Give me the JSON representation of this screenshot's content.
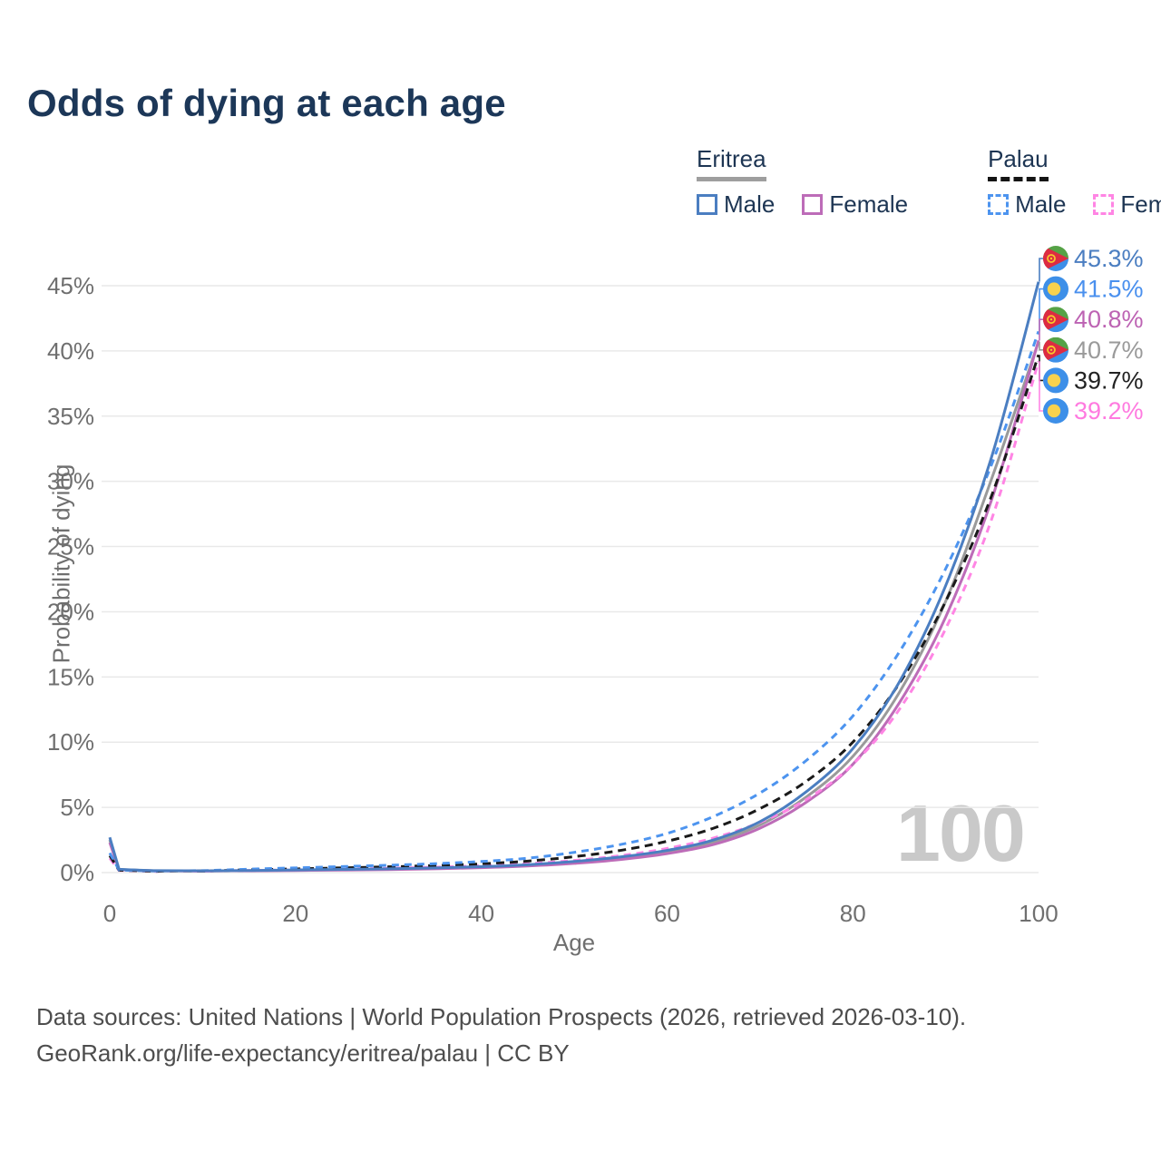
{
  "title": "Odds of dying at each age",
  "watermark": "100",
  "legend": {
    "groups": [
      {
        "label": "Eritrea",
        "line_style": "solid",
        "line_color": "#9e9e9e",
        "items": [
          {
            "label": "Male",
            "color": "#4b7ec1",
            "dashed": false
          },
          {
            "label": "Female",
            "color": "#bd6cb8",
            "dashed": false
          }
        ]
      },
      {
        "label": "Palau",
        "line_style": "dashed",
        "line_color": "#141414",
        "items": [
          {
            "label": "Male",
            "color": "#4d94ef",
            "dashed": true
          },
          {
            "label": "Female",
            "color": "#ff85e4",
            "dashed": true
          }
        ]
      }
    ]
  },
  "chart_data": {
    "type": "line",
    "title": "Odds of dying at each age",
    "xlabel": "Age",
    "ylabel": "Probability of dying",
    "xlim": [
      0,
      100
    ],
    "ylim": [
      0,
      47
    ],
    "x_ticks": [
      0,
      20,
      40,
      60,
      80,
      100
    ],
    "y_ticks": [
      0,
      5,
      10,
      15,
      20,
      25,
      30,
      35,
      40,
      45
    ],
    "y_tick_suffix": "%",
    "grid": true,
    "legend_position": "top-right",
    "age_marker": "100",
    "ages": [
      0,
      1,
      5,
      10,
      15,
      20,
      25,
      30,
      35,
      40,
      45,
      50,
      55,
      60,
      65,
      70,
      75,
      80,
      85,
      90,
      95,
      100
    ],
    "series": [
      {
        "name": "Eritrea",
        "country": "eritrea",
        "sex": "all",
        "color": "#9a9a9a",
        "dash": null,
        "end_label": "40.7%",
        "end_value": 40.7,
        "values": [
          2.5,
          0.24,
          0.14,
          0.12,
          0.15,
          0.18,
          0.22,
          0.26,
          0.33,
          0.41,
          0.55,
          0.78,
          1.1,
          1.58,
          2.33,
          3.65,
          5.8,
          8.9,
          13.8,
          20.8,
          30.3,
          40.7
        ]
      },
      {
        "name": "Eritrea Female",
        "country": "eritrea",
        "sex": "female",
        "color": "#bd6cb8",
        "dash": null,
        "end_label": "40.8%",
        "end_value": 40.8,
        "values": [
          2.3,
          0.22,
          0.13,
          0.11,
          0.13,
          0.16,
          0.19,
          0.23,
          0.29,
          0.37,
          0.5,
          0.7,
          1.0,
          1.45,
          2.15,
          3.4,
          5.4,
          8.3,
          13.0,
          19.6,
          28.7,
          40.8
        ]
      },
      {
        "name": "Palau Female",
        "country": "palau",
        "sex": "female",
        "color": "#ff85e4",
        "dash": "8 6",
        "end_label": "39.2%",
        "end_value": 39.2,
        "values": [
          1.1,
          0.16,
          0.09,
          0.1,
          0.16,
          0.21,
          0.27,
          0.33,
          0.41,
          0.52,
          0.68,
          0.93,
          1.3,
          1.85,
          2.65,
          3.85,
          5.6,
          8.3,
          12.5,
          18.7,
          27.2,
          39.2
        ]
      },
      {
        "name": "Palau",
        "country": "palau",
        "sex": "all",
        "color": "#1a1a1a",
        "dash": "9 6",
        "end_label": "39.7%",
        "end_value": 39.7,
        "values": [
          1.3,
          0.18,
          0.1,
          0.12,
          0.21,
          0.28,
          0.36,
          0.44,
          0.54,
          0.67,
          0.88,
          1.22,
          1.7,
          2.4,
          3.4,
          4.9,
          7.0,
          10.0,
          14.5,
          20.8,
          29.0,
          39.7
        ]
      },
      {
        "name": "Palau Male",
        "country": "palau",
        "sex": "male",
        "color": "#4d94ef",
        "dash": "8 6",
        "end_label": "41.5%",
        "end_value": 41.5,
        "values": [
          1.5,
          0.2,
          0.12,
          0.15,
          0.26,
          0.36,
          0.46,
          0.56,
          0.68,
          0.85,
          1.1,
          1.55,
          2.15,
          3.0,
          4.3,
          6.1,
          8.6,
          12.0,
          16.9,
          23.3,
          31.4,
          41.5
        ]
      },
      {
        "name": "Eritrea Male",
        "country": "eritrea",
        "sex": "male",
        "color": "#4b7ec1",
        "dash": null,
        "end_label": "45.3%",
        "end_value": 45.3,
        "values": [
          2.7,
          0.25,
          0.15,
          0.13,
          0.16,
          0.2,
          0.24,
          0.29,
          0.36,
          0.45,
          0.6,
          0.85,
          1.2,
          1.7,
          2.5,
          3.9,
          6.2,
          9.5,
          14.6,
          22.0,
          32.0,
          45.3
        ]
      }
    ],
    "end_label_text_colors": {
      "45.3%": "#4b7ec1",
      "41.5%": "#4a90ee",
      "40.8%": "#bd63b3",
      "40.7%": "#9a9a9a",
      "39.7%": "#222222",
      "39.2%": "#ff7ae0"
    },
    "flag_colors": {
      "eritrea": {
        "green": "#55a246",
        "blue": "#3d8fe8",
        "red": "#dd2b42",
        "gold": "#f6c62e"
      },
      "palau": {
        "blue": "#3d8fe8",
        "yellow": "#f8d24d"
      }
    }
  },
  "footer": {
    "line1": "Data sources: United Nations | World Population Prospects (2026, retrieved 2026-03-10).",
    "line2": "GeoRank.org/life-expectancy/eritrea/palau | CC BY"
  }
}
